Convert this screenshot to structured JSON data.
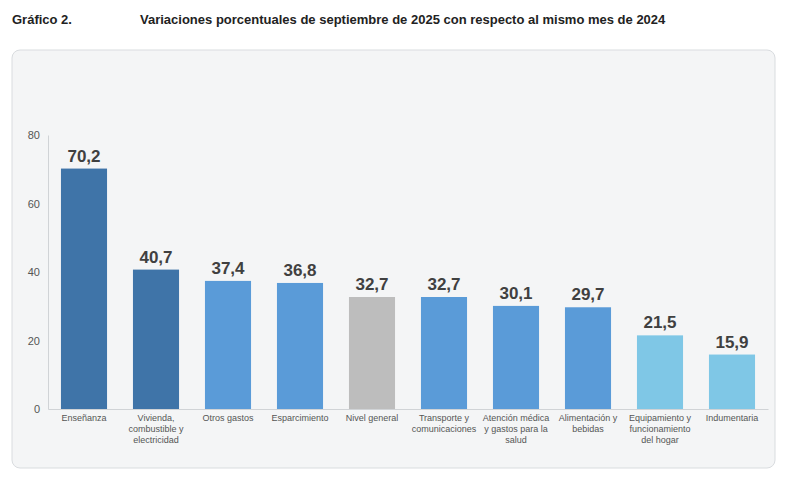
{
  "chart_data": {
    "type": "bar",
    "annotations": [
      "Gráfico 2."
    ],
    "title": "Variaciones porcentuales de septiembre de 2025 con respecto al mismo mes de 2024",
    "categories": [
      "Enseñanza",
      "Vivienda, combustible y electricidad",
      "Otros gastos",
      "Esparcimiento",
      "Nivel general",
      "Transporte y comunicaciones",
      "Atención médica y gastos para la salud",
      "Alimentación y bebidas",
      "Equipamiento y funcionamiento del hogar",
      "Indumentaria"
    ],
    "values": [
      70.2,
      40.7,
      37.4,
      36.8,
      32.7,
      32.7,
      30.1,
      29.7,
      21.5,
      15.9
    ],
    "value_labels": [
      "70,2",
      "40,7",
      "37,4",
      "36,8",
      "32,7",
      "32,7",
      "30,1",
      "29,7",
      "21,5",
      "15,9"
    ],
    "colors": [
      "#3f74a8",
      "#3f74a8",
      "#5a9bd8",
      "#5a9bd8",
      "#bdbdbd",
      "#5a9bd8",
      "#5a9bd8",
      "#5a9bd8",
      "#7fc7e6",
      "#7fc7e6"
    ],
    "ylim": [
      0,
      80
    ],
    "yticks": [
      0,
      20,
      40,
      60,
      80
    ],
    "grid": false,
    "data_labels": true
  }
}
